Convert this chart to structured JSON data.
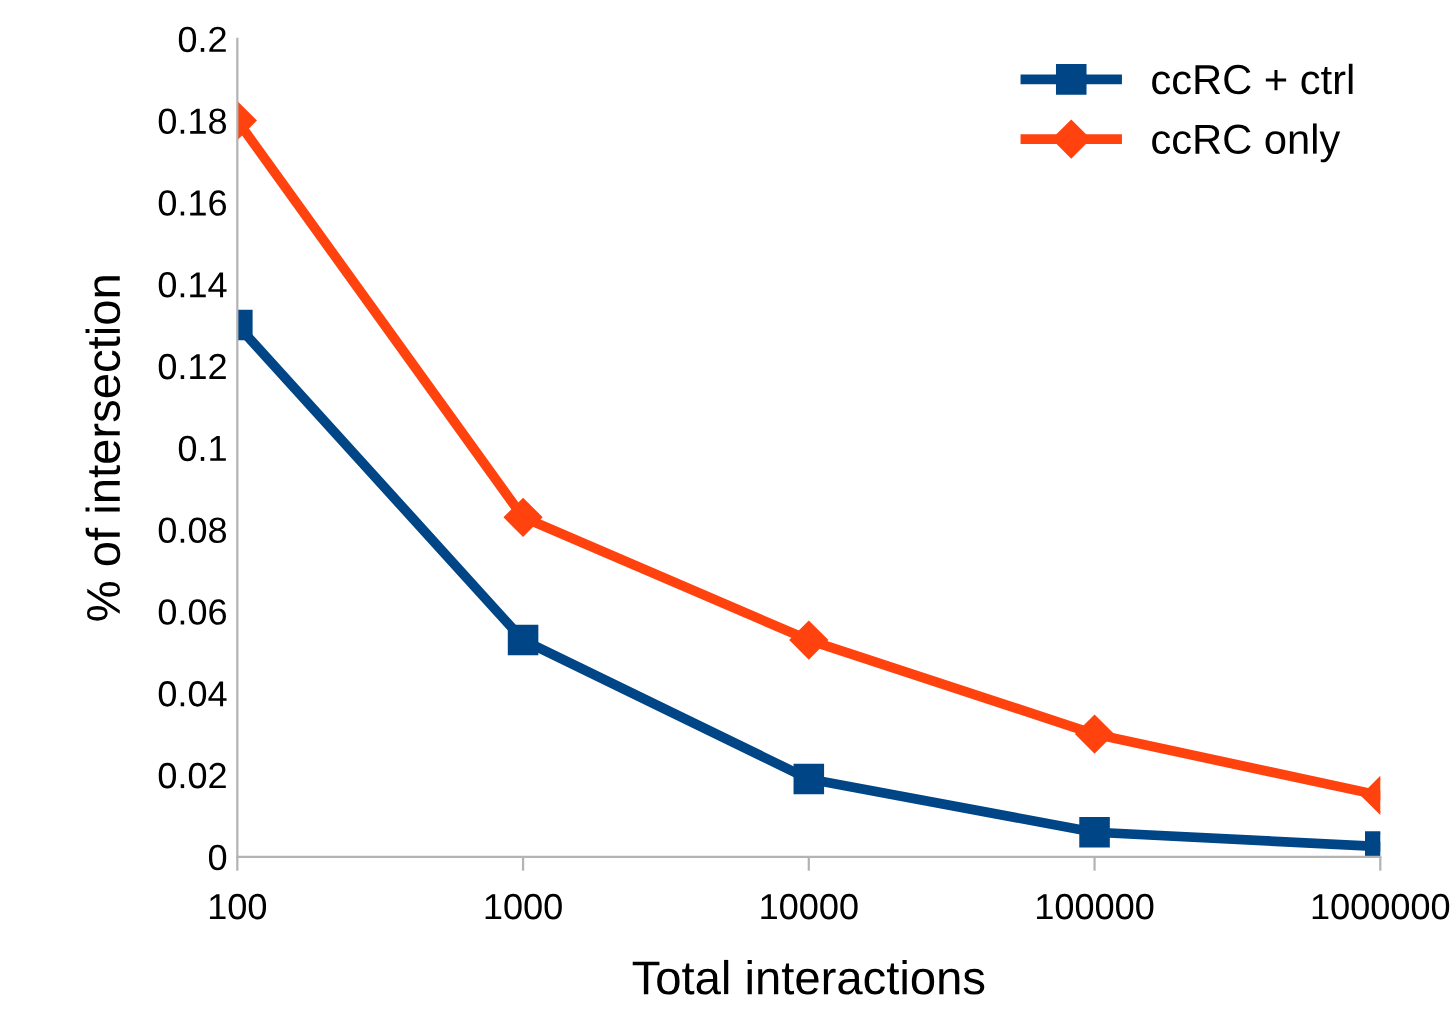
{
  "chart_data": {
    "type": "line",
    "xlabel": "Total interactions",
    "ylabel": "% of intersection",
    "x": [
      100,
      1000,
      10000,
      100000,
      1000000
    ],
    "log": "x",
    "xlim": [
      100,
      1000000
    ],
    "xticks": [
      100,
      1000,
      10000,
      100000,
      1000000
    ],
    "ylim": [
      0,
      0.2
    ],
    "yticks": [
      0,
      0.02,
      0.04,
      0.06,
      0.08,
      0.1,
      0.12,
      0.14,
      0.16,
      0.18,
      0.2
    ],
    "grid": false,
    "legend": "top right",
    "line_style": "solid",
    "series": [
      {
        "name": "ccRC + ctrl",
        "color": "#004586",
        "marker": "square",
        "values": [
          0.13,
          0.053,
          0.019,
          0.006,
          0.0025
        ]
      },
      {
        "name": "ccRC only",
        "color": "#ff420e",
        "marker": "diamond",
        "values": [
          0.18,
          0.083,
          0.053,
          0.03,
          0.015
        ]
      }
    ]
  }
}
